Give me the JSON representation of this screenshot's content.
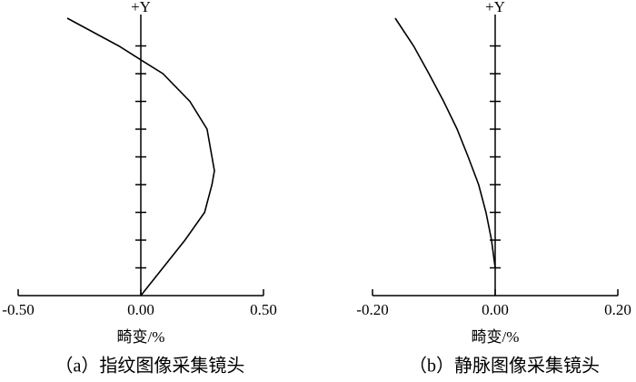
{
  "chart_data": [
    {
      "type": "line",
      "title": "（a）指纹图像采集镜头",
      "x_label": "畸变/%",
      "y_label": "+Y",
      "xlim": [
        -0.5,
        0.5
      ],
      "xticks": [
        {
          "value": -0.5,
          "label": "-0.50"
        },
        {
          "value": 0,
          "label": "0.00"
        },
        {
          "value": 0.5,
          "label": "0.50"
        }
      ],
      "ylim": [
        0,
        1
      ],
      "yticks": [
        0.1,
        0.2,
        0.3,
        0.4,
        0.5,
        0.6,
        0.7,
        0.8,
        0.9
      ],
      "series": [
        {
          "color": "#000000",
          "x": [
            0,
            0.09,
            0.18,
            0.26,
            0.29,
            0.3,
            0.29,
            0.27,
            0.2,
            0.09,
            0,
            -0.09,
            -0.3
          ],
          "values": [
            0,
            0.1,
            0.2,
            0.3,
            0.4,
            0.45,
            0.5,
            0.6,
            0.7,
            0.8,
            0.85,
            0.9,
            1.0
          ]
        }
      ]
    },
    {
      "type": "line",
      "title": "（b）静脉图像采集镜头",
      "x_label": "畸变/%",
      "y_label": "+Y",
      "xlim": [
        -0.2,
        0.2
      ],
      "xticks": [
        {
          "value": -0.2,
          "label": "-0.20"
        },
        {
          "value": 0,
          "label": "0.00"
        },
        {
          "value": 0.2,
          "label": "0.20"
        }
      ],
      "ylim": [
        0,
        1
      ],
      "yticks": [
        0.1,
        0.2,
        0.3,
        0.4,
        0.5,
        0.6,
        0.7,
        0.8,
        0.9
      ],
      "series": [
        {
          "color": "#000000",
          "x": [
            0,
            -0.006,
            -0.015,
            -0.027,
            -0.044,
            -0.062,
            -0.084,
            -0.108,
            -0.133,
            -0.163
          ],
          "values": [
            0.1,
            0.2,
            0.3,
            0.4,
            0.5,
            0.6,
            0.7,
            0.8,
            0.9,
            1.0
          ]
        }
      ]
    }
  ]
}
